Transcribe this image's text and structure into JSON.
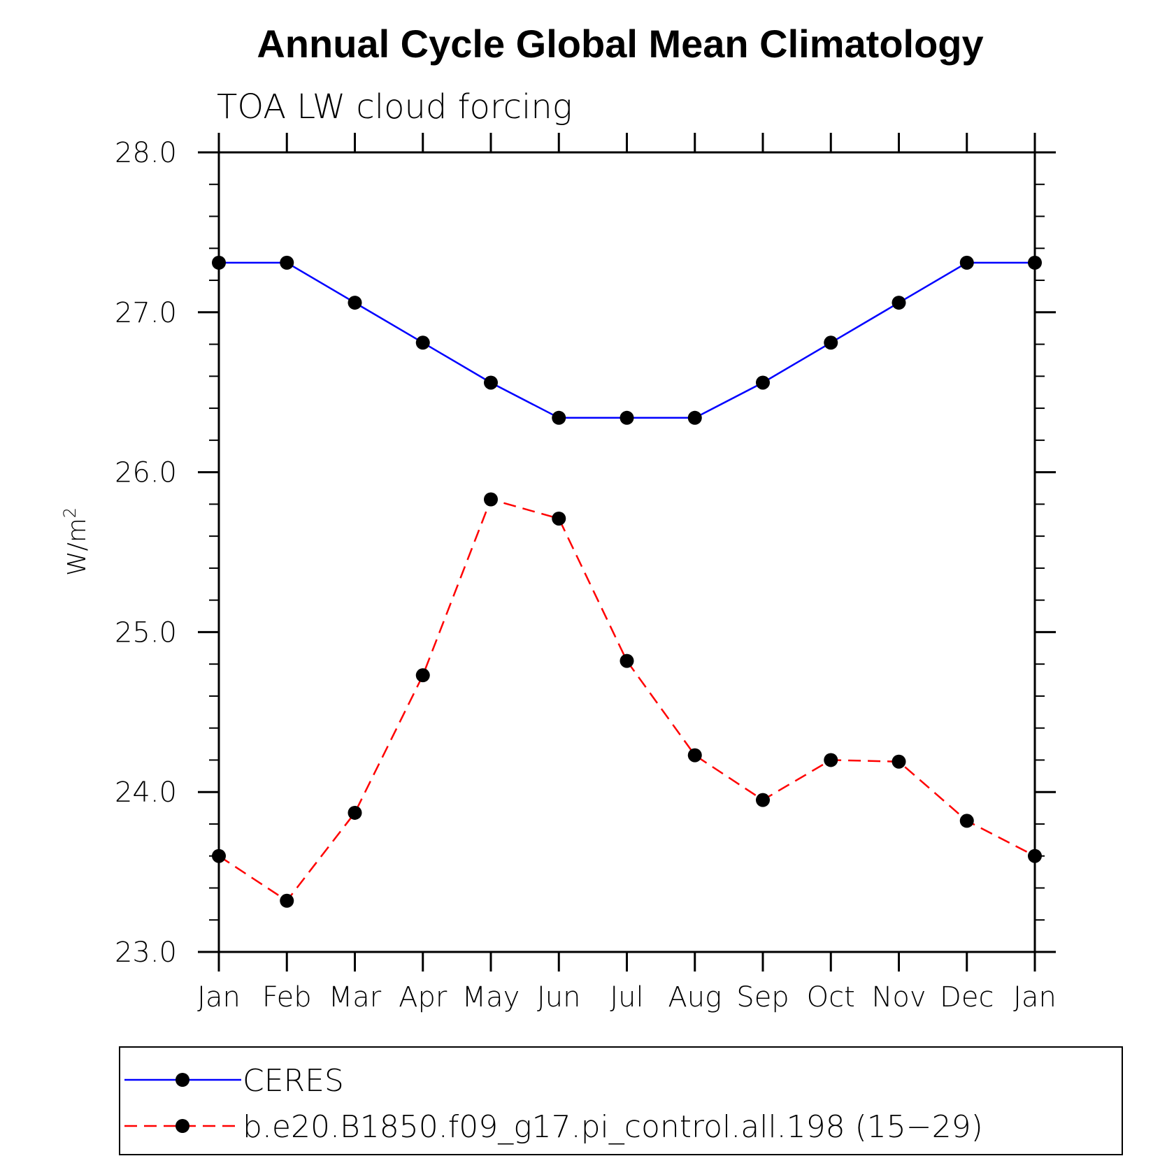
{
  "chart_data": {
    "type": "line",
    "title": "Annual Cycle Global Mean Climatology",
    "subtitle": "TOA LW cloud forcing",
    "ylabel_base": "W/m",
    "ylabel_exponent": "2",
    "categories": [
      "Jan",
      "Feb",
      "Mar",
      "Apr",
      "May",
      "Jun",
      "Jul",
      "Aug",
      "Sep",
      "Oct",
      "Nov",
      "Dec",
      "Jan"
    ],
    "ylim": [
      23.0,
      28.0
    ],
    "yticks": [
      "23.0",
      "24.0",
      "25.0",
      "26.0",
      "27.0",
      "28.0"
    ],
    "series": [
      {
        "name": "CERES",
        "color": "#0000ff",
        "dash": "solid",
        "values": [
          27.31,
          27.31,
          27.06,
          26.81,
          26.56,
          26.34,
          26.34,
          26.34,
          26.56,
          26.81,
          27.06,
          27.31,
          27.31
        ]
      },
      {
        "name": "b.e20.B1850.f09_g17.pi_control.all.198 (15−29)",
        "color": "#ff0000",
        "dash": "dashed",
        "values": [
          23.6,
          23.32,
          23.87,
          24.73,
          25.83,
          25.71,
          24.82,
          24.23,
          23.95,
          24.2,
          24.19,
          23.82,
          23.6
        ]
      }
    ],
    "legend_position": "bottom"
  }
}
